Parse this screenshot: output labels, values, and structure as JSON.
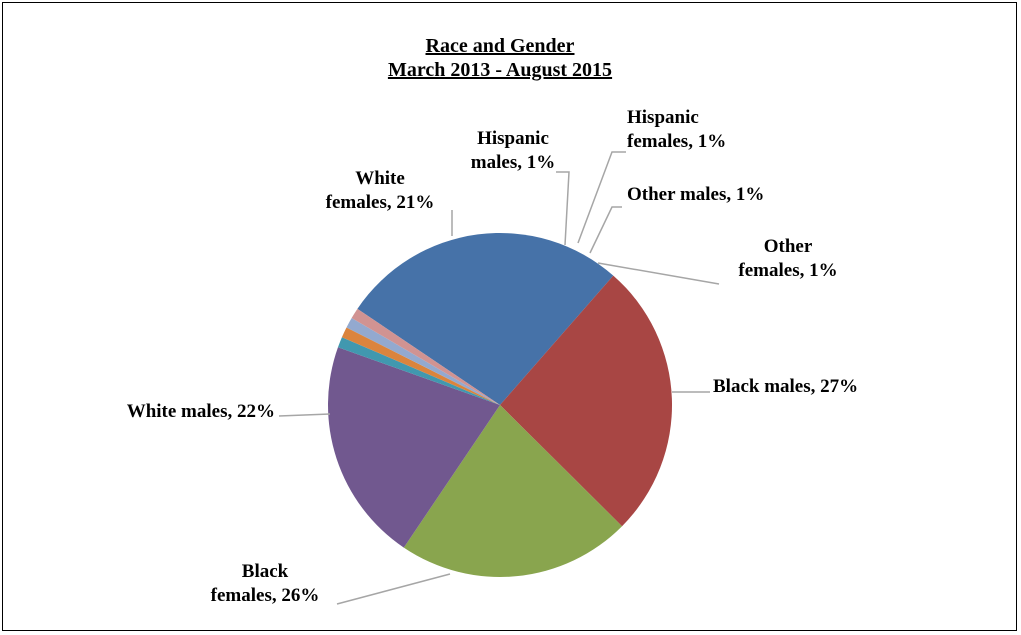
{
  "chart_data": {
    "type": "pie",
    "title_line1": "Race and Gender",
    "title_line2": "March 2013 - August 2015",
    "slices": [
      {
        "label_lines": [
          "Black males, 27%"
        ],
        "value": 27,
        "color": "#4672a8"
      },
      {
        "label_lines": [
          "Black",
          "females, 26%"
        ],
        "value": 26,
        "color": "#a84644"
      },
      {
        "label_lines": [
          "White males, 22%"
        ],
        "value": 22,
        "color": "#89a54e"
      },
      {
        "label_lines": [
          "White",
          "females, 21%"
        ],
        "value": 21,
        "color": "#71588f"
      },
      {
        "label_lines": [
          "Hispanic",
          "males, 1%"
        ],
        "value": 1,
        "color": "#4198af"
      },
      {
        "label_lines": [
          "Hispanic",
          "females, 1%"
        ],
        "value": 1,
        "color": "#db843d"
      },
      {
        "label_lines": [
          "Other males, 1%"
        ],
        "value": 1,
        "color": "#93a9cf"
      },
      {
        "label_lines": [
          "Other",
          "females, 1%"
        ],
        "value": 1,
        "color": "#d19392"
      }
    ]
  }
}
